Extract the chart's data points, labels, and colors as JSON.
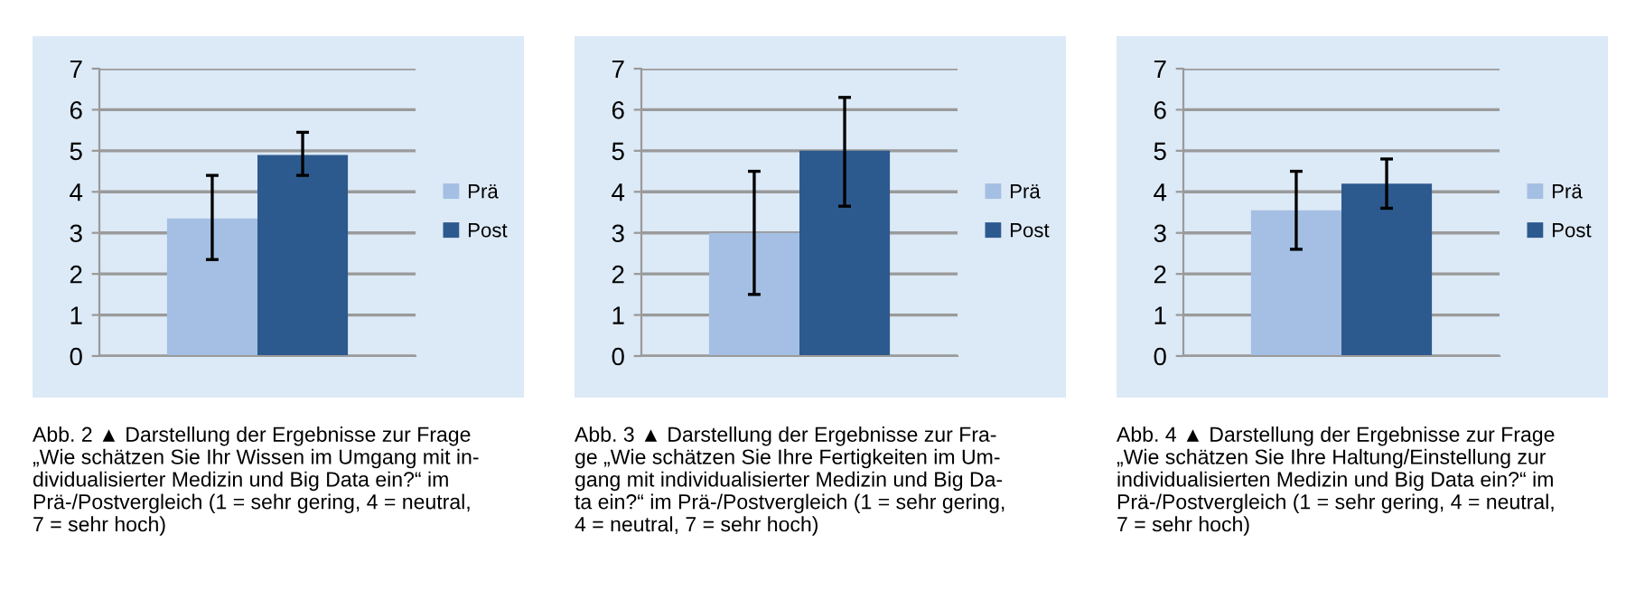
{
  "chart_data": [
    {
      "type": "bar",
      "categories": [
        null
      ],
      "ylim": [
        0,
        7
      ],
      "yticks": [
        0,
        1,
        2,
        3,
        4,
        5,
        6,
        7
      ],
      "grid": "y",
      "legend": "right",
      "tick_labels": "y",
      "series": [
        {
          "name": "Prä",
          "color": "#a4bfe3",
          "values": [
            3.35
          ],
          "errors": [
            [
              2.35,
              4.4
            ]
          ]
        },
        {
          "name": "Post",
          "color": "#2d5a8e",
          "values": [
            4.9
          ],
          "errors": [
            [
              4.4,
              5.45
            ]
          ]
        }
      ],
      "annotations": [
        "Abb. 2 ▲ Darstellung der Ergebnisse zur Frage\n„Wie schätzen Sie Ihr Wissen im Umgang mit in-\ndividualisierter Medizin und Big Data ein?“ im\nPrä-/Postvergleich (1 = sehr gering, 4 = neutral,\n7 = sehr hoch)"
      ]
    },
    {
      "type": "bar",
      "categories": [
        null
      ],
      "ylim": [
        0,
        7
      ],
      "yticks": [
        0,
        1,
        2,
        3,
        4,
        5,
        6,
        7
      ],
      "grid": "y",
      "legend": "right",
      "tick_labels": "y",
      "series": [
        {
          "name": "Prä",
          "color": "#a4bfe3",
          "values": [
            3.0
          ],
          "errors": [
            [
              1.5,
              4.5
            ]
          ]
        },
        {
          "name": "Post",
          "color": "#2d5a8e",
          "values": [
            5.0
          ],
          "errors": [
            [
              3.65,
              6.3
            ]
          ]
        }
      ],
      "annotations": [
        "Abb. 3 ▲ Darstellung der Ergebnisse zur Fra-\nge „Wie schätzen Sie Ihre Fertigkeiten im Um-\ngang mit individualisierter Medizin und Big Da-\nta ein?“ im Prä-/Postvergleich (1 = sehr gering,\n4 = neutral, 7 = sehr hoch)"
      ]
    },
    {
      "type": "bar",
      "categories": [
        null
      ],
      "ylim": [
        0,
        7
      ],
      "yticks": [
        0,
        1,
        2,
        3,
        4,
        5,
        6,
        7
      ],
      "grid": "y",
      "legend": "right",
      "tick_labels": "y",
      "series": [
        {
          "name": "Prä",
          "color": "#a4bfe3",
          "values": [
            3.55
          ],
          "errors": [
            [
              2.6,
              4.5
            ]
          ]
        },
        {
          "name": "Post",
          "color": "#2d5a8e",
          "values": [
            4.2
          ],
          "errors": [
            [
              3.6,
              4.8
            ]
          ]
        }
      ],
      "annotations": [
        "Abb. 4 ▲ Darstellung der Ergebnisse zur Frage\n„Wie schätzen Sie Ihre Haltung/Einstellung zur\nindividualisierten Medizin und Big Data ein?“ im\nPrä-/Postvergleich (1 = sehr gering, 4 = neutral,\n7 = sehr hoch)"
      ]
    }
  ]
}
